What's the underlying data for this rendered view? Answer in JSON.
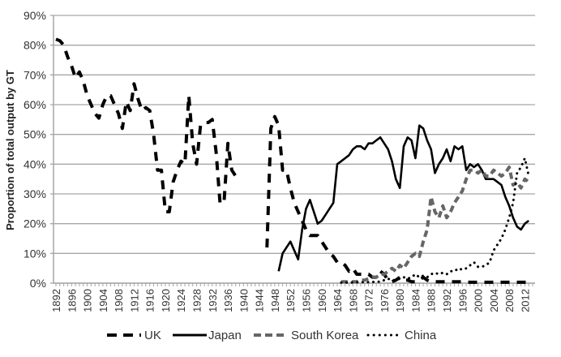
{
  "chart_data": {
    "type": "line",
    "title": "",
    "xlabel": "",
    "ylabel": "Proportion  of total output by GT",
    "ylim": [
      0,
      90
    ],
    "xlim": [
      1892,
      2014
    ],
    "grid": true,
    "legend_position": "bottom",
    "y_ticks": [
      "0%",
      "10%",
      "20%",
      "30%",
      "40%",
      "50%",
      "60%",
      "70%",
      "80%",
      "90%"
    ],
    "x_ticks": [
      "1892",
      "1896",
      "1900",
      "1904",
      "1908",
      "1912",
      "1916",
      "1920",
      "1924",
      "1928",
      "1932",
      "1936",
      "1940",
      "1944",
      "1948",
      "1952",
      "1956",
      "1960",
      "1964",
      "1968",
      "1972",
      "1976",
      "1980",
      "1984",
      "1988",
      "1992",
      "1996",
      "2000",
      "2004",
      "2008",
      "2012"
    ],
    "series": [
      {
        "name": "UK",
        "style": "long-dash",
        "color": "#000000",
        "x": [
          1892,
          1893,
          1894,
          1895,
          1896,
          1897,
          1898,
          1899,
          1900,
          1901,
          1902,
          1903,
          1904,
          1905,
          1906,
          1907,
          1908,
          1909,
          1910,
          1911,
          1912,
          1913,
          1914,
          1915,
          1916,
          1917,
          1918,
          1919,
          1920,
          1921,
          1922,
          1923,
          1924,
          1925,
          1926,
          1927,
          1928,
          1929,
          1930,
          1931,
          1932,
          1933,
          1934,
          1935,
          1936,
          1937,
          1938,
          1939,
          null,
          1946,
          1947,
          1948,
          1949,
          1950,
          1951,
          1952,
          1953,
          1954,
          1955,
          1956,
          1957,
          1958,
          1959,
          1960,
          1961,
          1962,
          1963,
          1964,
          1965,
          1966,
          1967,
          1968,
          1969,
          1970,
          1971,
          1972,
          1973,
          1974,
          1975,
          1976,
          1977,
          1978,
          1979,
          1980,
          1981,
          1982,
          1983,
          1984,
          1985,
          1986,
          1987,
          1988,
          1989,
          1990,
          1992,
          1994,
          1996,
          1998,
          2000,
          2002,
          2004,
          2006,
          2008,
          2010,
          2012,
          2013
        ],
        "values": [
          82,
          81.5,
          80,
          76,
          73,
          69,
          71,
          68,
          63,
          60,
          57,
          55.5,
          60,
          63,
          63,
          60,
          57,
          52,
          61,
          58,
          67,
          62,
          58,
          59,
          58,
          50,
          38,
          38,
          24,
          24,
          34,
          38,
          41,
          40,
          63,
          47,
          40,
          53,
          54,
          54,
          55,
          44,
          27,
          27,
          47,
          38,
          36,
          35,
          null,
          12,
          52,
          56,
          53,
          38,
          38,
          32,
          27,
          24,
          21,
          18,
          16,
          16,
          16,
          14,
          12,
          10,
          9,
          7,
          7,
          6,
          4,
          5,
          3,
          3,
          3,
          3,
          2,
          2,
          4,
          3,
          1,
          0.5,
          1,
          2,
          1,
          1,
          0.5,
          0.5,
          1,
          2,
          1,
          0.5,
          0.5,
          0.5,
          0.5,
          0.5,
          0.5,
          0.3,
          0.3,
          0.3,
          0.3,
          0.3,
          0.3,
          0.3,
          0.3,
          0.3
        ]
      },
      {
        "name": "Japan",
        "style": "solid",
        "color": "#000000",
        "x": [
          1949,
          1950,
          1951,
          1952,
          1953,
          1954,
          1955,
          1956,
          1957,
          1958,
          1959,
          1960,
          1961,
          1962,
          1963,
          1964,
          1965,
          1966,
          1967,
          1968,
          1969,
          1970,
          1971,
          1972,
          1973,
          1974,
          1975,
          1976,
          1977,
          1978,
          1979,
          1980,
          1981,
          1982,
          1983,
          1984,
          1985,
          1986,
          1987,
          1988,
          1989,
          1990,
          1991,
          1992,
          1993,
          1994,
          1995,
          1996,
          1997,
          1998,
          1999,
          2000,
          2001,
          2002,
          2003,
          2004,
          2005,
          2006,
          2007,
          2008,
          2009,
          2010,
          2011,
          2012,
          2013
        ],
        "values": [
          4,
          10,
          12,
          14,
          11,
          8,
          18,
          25,
          28,
          24,
          20,
          21,
          23,
          25,
          27,
          40,
          41,
          42,
          43,
          45,
          46,
          46,
          45,
          47,
          47,
          48,
          49,
          47,
          45,
          41,
          35,
          32,
          46,
          49,
          48,
          42,
          53,
          52,
          48,
          45,
          37,
          40,
          42,
          45,
          41,
          46,
          45,
          46,
          38,
          40,
          39,
          40,
          38,
          35,
          35,
          35,
          34,
          33,
          29,
          26,
          22,
          19,
          18,
          20,
          21
        ]
      },
      {
        "name": "South Korea",
        "style": "short-dash",
        "color": "#666666",
        "x": [
          1965,
          1966,
          1967,
          1968,
          1969,
          1970,
          1971,
          1972,
          1973,
          1974,
          1975,
          1976,
          1977,
          1978,
          1979,
          1980,
          1981,
          1982,
          1983,
          1984,
          1985,
          1986,
          1987,
          1988,
          1989,
          1990,
          1991,
          1992,
          1993,
          1994,
          1995,
          1996,
          1997,
          1998,
          1999,
          2000,
          2001,
          2002,
          2003,
          2004,
          2005,
          2006,
          2007,
          2008,
          2009,
          2010,
          2011,
          2012,
          2013
        ],
        "values": [
          0.5,
          0.5,
          0.5,
          0.5,
          0.5,
          1,
          1,
          1.5,
          2,
          2,
          3,
          3,
          4,
          5,
          4,
          6,
          5,
          7,
          9,
          10,
          9,
          14,
          18,
          29,
          24,
          22,
          26,
          22,
          24,
          27,
          29,
          31,
          35,
          38,
          38,
          37,
          38,
          36,
          36,
          38,
          37,
          36,
          37,
          39,
          33,
          34,
          32,
          35,
          34
        ]
      },
      {
        "name": "China",
        "style": "dotted",
        "color": "#000000",
        "x": [
          1965,
          1967,
          1969,
          1971,
          1973,
          1975,
          1976,
          1977,
          1978,
          1979,
          1980,
          1981,
          1982,
          1983,
          1984,
          1985,
          1986,
          1987,
          1988,
          1989,
          1990,
          1991,
          1992,
          1993,
          1994,
          1995,
          1996,
          1997,
          1998,
          1999,
          2000,
          2001,
          2002,
          2003,
          2004,
          2005,
          2006,
          2007,
          2008,
          2009,
          2010,
          2011,
          2012,
          2013
        ],
        "values": [
          0.2,
          0.2,
          0.3,
          0.3,
          0.4,
          0.5,
          1,
          1.5,
          1,
          1,
          1.5,
          2,
          1.5,
          2,
          3,
          2,
          2.5,
          2,
          3,
          3.5,
          3,
          3.5,
          3,
          4,
          4,
          5,
          4.5,
          5,
          6,
          7,
          5.5,
          5.5,
          6,
          7,
          11,
          13,
          15,
          18,
          22,
          27,
          37,
          39,
          42,
          36
        ]
      }
    ]
  },
  "legend": {
    "items": [
      {
        "label": "UK"
      },
      {
        "label": "Japan"
      },
      {
        "label": "South Korea"
      },
      {
        "label": "China"
      }
    ]
  },
  "axis": {
    "ylabel": "Proportion  of total output by GT"
  }
}
